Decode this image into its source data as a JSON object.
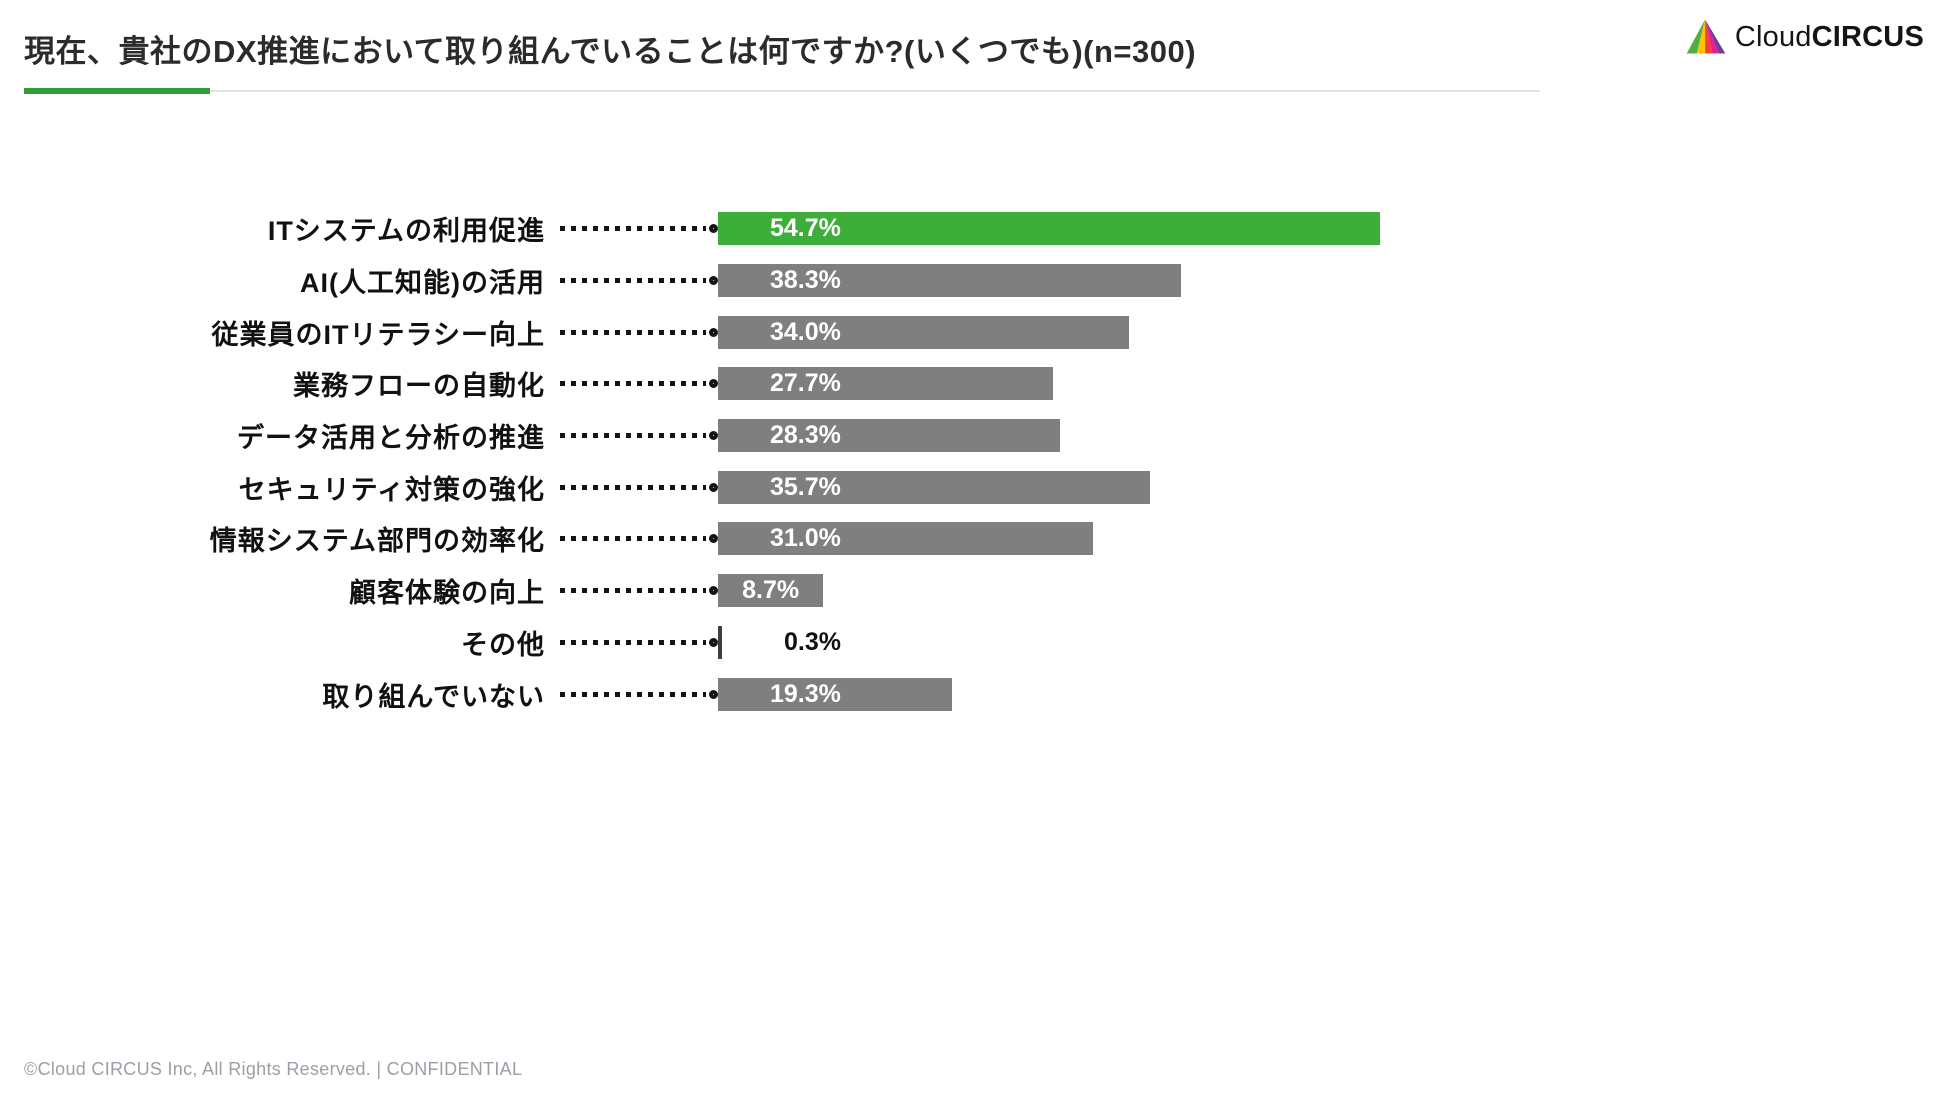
{
  "header": {
    "title": "現在、貴社のDX推進において取り組んでいることは何ですか?(いくつでも)(n=300)",
    "accent_color": "#2f9e36",
    "logo": {
      "word1": "Cloud",
      "word2": "CIRCUS"
    }
  },
  "chart_data": {
    "type": "bar",
    "orientation": "horizontal",
    "title": "現在、貴社のDX推進において取り組んでいることは何ですか?(いくつでも)(n=300)",
    "sample_size": "n=300",
    "categories": [
      "ITシステムの利用促進",
      "AI(人工知能)の活用",
      "従業員のITリテラシー向上",
      "業務フローの自動化",
      "データ活用と分析の推進",
      "セキュリティ対策の強化",
      "情報システム部門の効率化",
      "顧客体験の向上",
      "その他",
      "取り組んでいない"
    ],
    "values": [
      54.7,
      38.3,
      34.0,
      27.7,
      28.3,
      35.7,
      31.0,
      8.7,
      0.3,
      19.3
    ],
    "value_labels": [
      "54.7%",
      "38.3%",
      "34.0%",
      "27.7%",
      "28.3%",
      "35.7%",
      "31.0%",
      "8.7%",
      "0.3%",
      "19.3%"
    ],
    "highlight_index": 0,
    "colors": {
      "highlight": "#3eae3a",
      "default": "#7f7f7f",
      "tiny": "#3f3f3f"
    },
    "xlim": [
      0,
      100
    ],
    "grid": false,
    "legend": false
  },
  "footer": {
    "text": "©Cloud CIRCUS Inc, All Rights Reserved. | CONFIDENTIAL"
  }
}
